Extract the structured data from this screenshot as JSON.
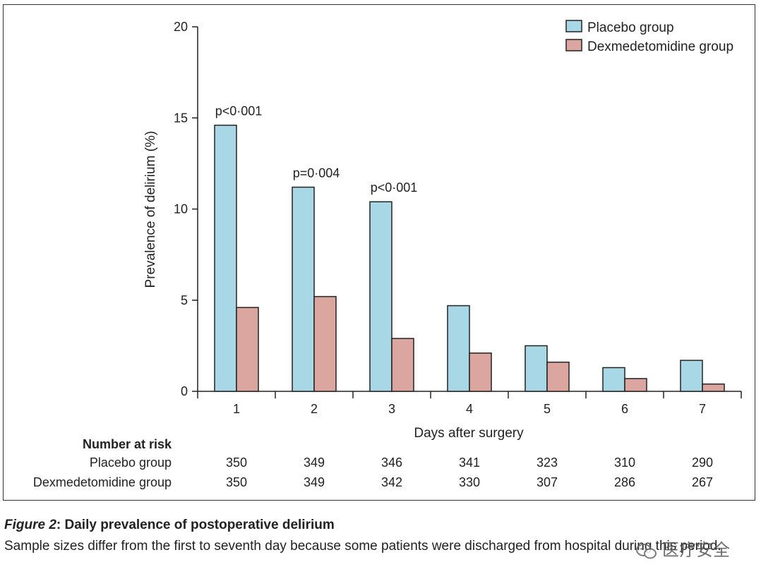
{
  "chart_data": {
    "type": "bar",
    "title": "",
    "xlabel": "Days after surgery",
    "ylabel": "Prevalence of delirium (%)",
    "ylim": [
      0,
      20
    ],
    "yticks": [
      0,
      5,
      10,
      15,
      20
    ],
    "categories": [
      "1",
      "2",
      "3",
      "4",
      "5",
      "6",
      "7"
    ],
    "series": [
      {
        "name": "Placebo group",
        "color": "#a8d8e6",
        "values": [
          14.6,
          11.2,
          10.4,
          4.7,
          2.5,
          1.3,
          1.7
        ]
      },
      {
        "name": "Dexmedetomidine group",
        "color": "#dba6a0",
        "values": [
          4.6,
          5.2,
          2.9,
          2.1,
          1.6,
          0.7,
          0.4
        ]
      }
    ],
    "annotations": [
      {
        "category": "1",
        "text": "p<0·001"
      },
      {
        "category": "2",
        "text": "p=0·004"
      },
      {
        "category": "3",
        "text": "p<0·001"
      }
    ],
    "legend_position": "top-right",
    "grid": false
  },
  "risk_table": {
    "heading": "Number at risk",
    "rows": [
      {
        "label": "Placebo group",
        "values": [
          "350",
          "349",
          "346",
          "341",
          "323",
          "310",
          "290"
        ]
      },
      {
        "label": "Dexmedetomidine group",
        "values": [
          "350",
          "349",
          "342",
          "330",
          "307",
          "286",
          "267"
        ]
      }
    ]
  },
  "caption": {
    "label": "Figure 2",
    "title": ": Daily prevalence of postoperative delirium",
    "body": "Sample sizes differ from the first to seventh day because some patients were discharged from hospital during this period."
  },
  "watermark": {
    "text": "医疗安全",
    "icon": "wechat-icon"
  }
}
